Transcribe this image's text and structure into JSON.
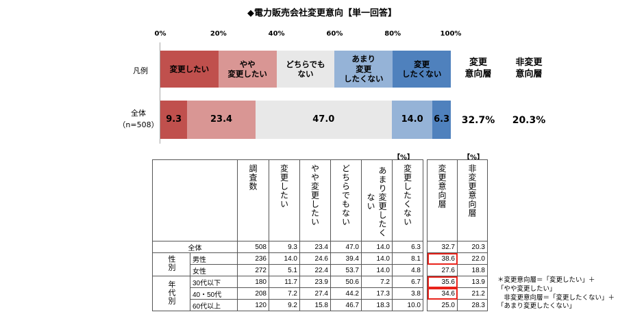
{
  "title": "◆電力販売会社変更意向【単一回答】",
  "axis_ticks": [
    "0%",
    "20%",
    "40%",
    "60%",
    "80%",
    "100%"
  ],
  "legend_row_label": "凡例",
  "legend_items": [
    "変更したい",
    "やや\n変更したい",
    "どちらでも\nない",
    "あまり\n変更\nしたくない",
    "変更\nしたくない"
  ],
  "summary_headers": [
    "変更\n意向層",
    "非変更\n意向層"
  ],
  "overall_label": "全体\n（n=508）",
  "colors": {
    "c1": "#c0504d",
    "c2": "#d99694",
    "c3": "#e8e8e8",
    "c4": "#95b3d7",
    "c5": "#4f81bd"
  },
  "chart_data": {
    "type": "bar",
    "orientation": "horizontal-stacked-100",
    "categories": [
      "全体"
    ],
    "series": [
      {
        "name": "変更したい",
        "values": [
          9.3
        ]
      },
      {
        "name": "やや変更したい",
        "values": [
          23.4
        ]
      },
      {
        "name": "どちらでもない",
        "values": [
          47.0
        ]
      },
      {
        "name": "あまり変更したくない",
        "values": [
          14.0
        ]
      },
      {
        "name": "変更したくない",
        "values": [
          6.3
        ]
      }
    ],
    "labels": [
      "9.3",
      "23.4",
      "47.0",
      "14.0",
      "6.3"
    ],
    "summary": {
      "change_intent": "32.7%",
      "no_change_intent": "20.3%"
    },
    "xlim": [
      0,
      100
    ]
  },
  "table": {
    "pct_marks": [
      "【%】",
      "【%】"
    ],
    "headers": [
      "調査数",
      "変更したい",
      "やや変更したい",
      "どちらでもない",
      "あまり変更したくない",
      "変更したくない",
      "変更意向層",
      "非変更意向層"
    ],
    "group_labels": [
      "性別",
      "年代別"
    ],
    "rows": [
      {
        "label": "全体",
        "values": [
          "508",
          "9.3",
          "23.4",
          "47.0",
          "14.0",
          "6.3",
          "32.7",
          "20.3"
        ]
      },
      {
        "label": "男性",
        "values": [
          "236",
          "14.0",
          "24.6",
          "39.4",
          "14.0",
          "8.1",
          "38.6",
          "22.0"
        ]
      },
      {
        "label": "女性",
        "values": [
          "272",
          "5.1",
          "22.4",
          "53.7",
          "14.0",
          "4.8",
          "27.6",
          "18.8"
        ]
      },
      {
        "label": "30代以下",
        "values": [
          "180",
          "11.7",
          "23.9",
          "50.6",
          "7.2",
          "6.7",
          "35.6",
          "13.9"
        ]
      },
      {
        "label": "40・50代",
        "values": [
          "208",
          "7.2",
          "27.4",
          "44.2",
          "17.3",
          "3.8",
          "34.6",
          "21.2"
        ]
      },
      {
        "label": "60代以上",
        "values": [
          "120",
          "9.2",
          "15.8",
          "46.7",
          "18.3",
          "10.0",
          "25.0",
          "28.3"
        ]
      }
    ]
  },
  "note": "＊変更意向層＝「変更したい」＋\n「やや変更したい」\n　非変更意向層＝「変更したくない」＋\n「あまり変更したくない」"
}
